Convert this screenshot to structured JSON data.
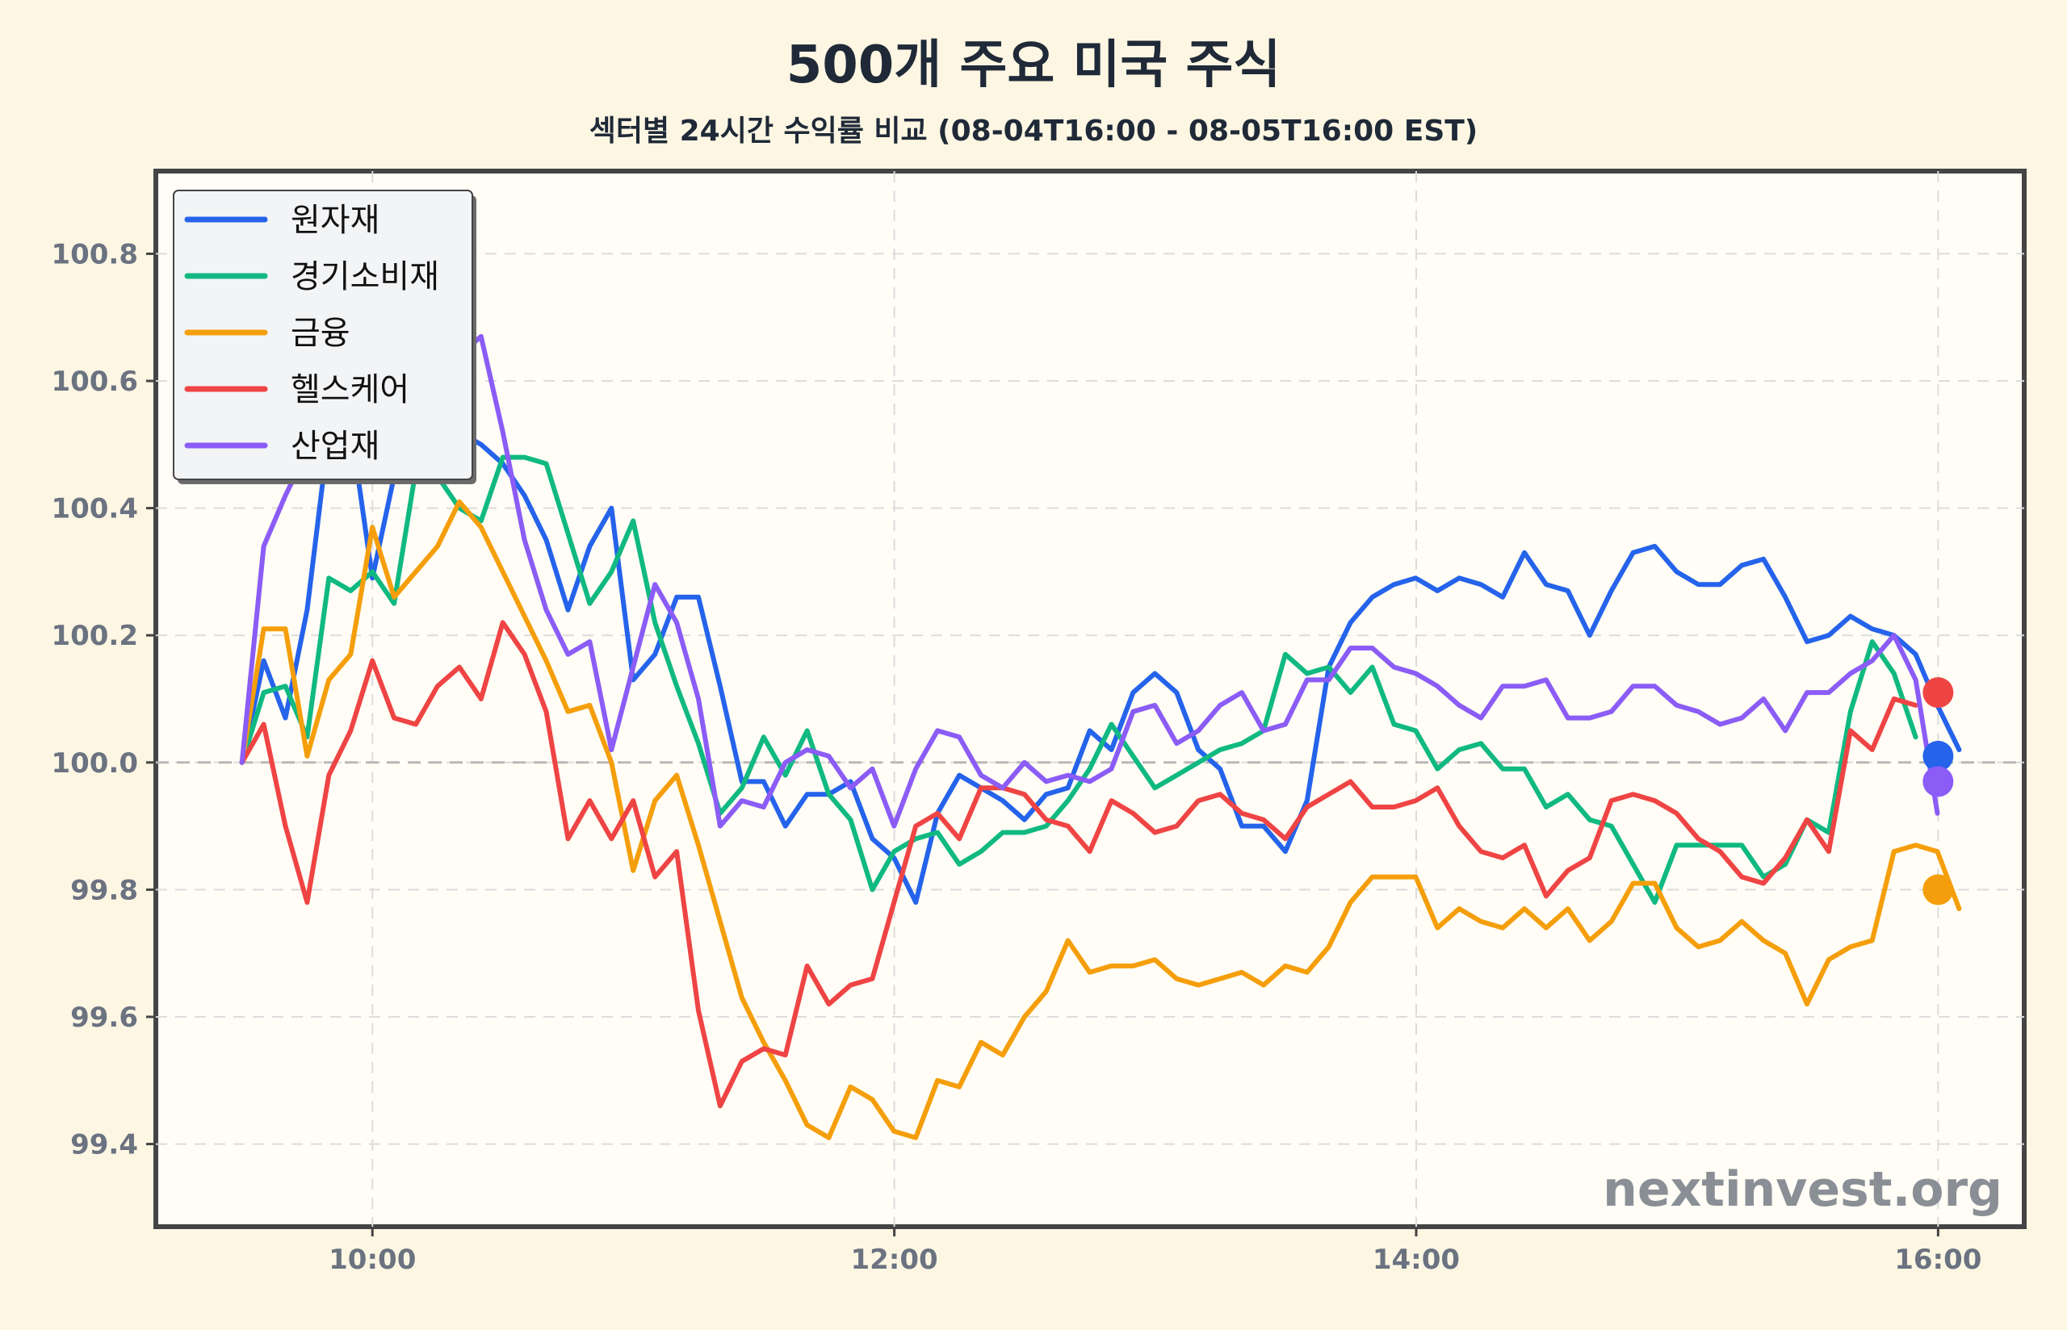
{
  "chart_data": {
    "type": "line",
    "title": "500개 주요 미국 주식",
    "subtitle": "섹터별 24시간 수익률 비교 (08-04T16:00 - 08-05T16:00 EST)",
    "watermark": "nextinvest.org",
    "x_ticks": [
      "10:00",
      "12:00",
      "14:00",
      "16:00"
    ],
    "x_tick_hours": [
      10,
      12,
      14,
      16
    ],
    "xlim": [
      9.17,
      16.33
    ],
    "y_ticks": [
      "99.4",
      "99.6",
      "99.8",
      "100.0",
      "100.2",
      "100.4",
      "100.6",
      "100.8"
    ],
    "y_tick_values": [
      99.4,
      99.6,
      99.8,
      100.0,
      100.2,
      100.4,
      100.6,
      100.8
    ],
    "ylim": [
      99.27,
      100.93
    ],
    "baseline": 100.0,
    "grid": true,
    "legend_position": "top-left",
    "x_start_hour": 9.5,
    "x_step_hours": 0.0833,
    "series": [
      {
        "name": "원자재",
        "color": "#2563eb",
        "end_marker": 100.01,
        "values": [
          100.0,
          100.16,
          100.07,
          100.24,
          100.52,
          100.53,
          100.29,
          100.45,
          100.6,
          100.59,
          100.52,
          100.5,
          100.47,
          100.42,
          100.35,
          100.24,
          100.34,
          100.4,
          100.13,
          100.17,
          100.26,
          100.26,
          100.12,
          99.97,
          99.97,
          99.9,
          99.95,
          99.95,
          99.97,
          99.88,
          99.85,
          99.78,
          99.92,
          99.98,
          99.96,
          99.94,
          99.91,
          99.95,
          99.96,
          100.05,
          100.02,
          100.11,
          100.14,
          100.11,
          100.02,
          99.99,
          99.9,
          99.9,
          99.86,
          99.94,
          100.15,
          100.22,
          100.26,
          100.28,
          100.29,
          100.27,
          100.29,
          100.28,
          100.26,
          100.33,
          100.28,
          100.27,
          100.2,
          100.27,
          100.33,
          100.34,
          100.3,
          100.28,
          100.28,
          100.31,
          100.32,
          100.26,
          100.19,
          100.2,
          100.23,
          100.21,
          100.2,
          100.17,
          100.09,
          100.02
        ]
      },
      {
        "name": "경기소비재",
        "color": "#10b981",
        "end_marker": null,
        "values": [
          100.0,
          100.11,
          100.12,
          100.04,
          100.29,
          100.27,
          100.3,
          100.25,
          100.46,
          100.45,
          100.4,
          100.38,
          100.48,
          100.48,
          100.47,
          100.36,
          100.25,
          100.3,
          100.38,
          100.22,
          100.12,
          100.03,
          99.92,
          99.96,
          100.04,
          99.98,
          100.05,
          99.95,
          99.91,
          99.8,
          99.86,
          99.88,
          99.89,
          99.84,
          99.86,
          99.89,
          99.89,
          99.9,
          99.94,
          99.99,
          100.06,
          100.01,
          99.96,
          99.98,
          100.0,
          100.02,
          100.03,
          100.05,
          100.17,
          100.14,
          100.15,
          100.11,
          100.15,
          100.06,
          100.05,
          99.99,
          100.02,
          100.03,
          99.99,
          99.99,
          99.93,
          99.95,
          99.91,
          99.9,
          99.84,
          99.78,
          99.87,
          99.87,
          99.87,
          99.87,
          99.82,
          99.84,
          99.91,
          99.89,
          100.08,
          100.19,
          100.14,
          100.04
        ]
      },
      {
        "name": "금융",
        "color": "#f59e0b",
        "end_marker": 99.8,
        "values": [
          100.0,
          100.21,
          100.21,
          100.01,
          100.13,
          100.17,
          100.37,
          100.26,
          100.3,
          100.34,
          100.41,
          100.37,
          100.3,
          100.23,
          100.16,
          100.08,
          100.09,
          100.0,
          99.83,
          99.94,
          99.98,
          99.87,
          99.75,
          99.63,
          99.56,
          99.5,
          99.43,
          99.41,
          99.49,
          99.47,
          99.42,
          99.41,
          99.5,
          99.49,
          99.56,
          99.54,
          99.6,
          99.64,
          99.72,
          99.67,
          99.68,
          99.68,
          99.69,
          99.66,
          99.65,
          99.66,
          99.67,
          99.65,
          99.68,
          99.67,
          99.71,
          99.78,
          99.82,
          99.82,
          99.82,
          99.74,
          99.77,
          99.75,
          99.74,
          99.77,
          99.74,
          99.77,
          99.72,
          99.75,
          99.81,
          99.81,
          99.74,
          99.71,
          99.72,
          99.75,
          99.72,
          99.7,
          99.62,
          99.69,
          99.71,
          99.72,
          99.86,
          99.87,
          99.86,
          99.77
        ]
      },
      {
        "name": "헬스케어",
        "color": "#ef4444",
        "end_marker": 100.11,
        "values": [
          100.0,
          100.06,
          99.9,
          99.78,
          99.98,
          100.05,
          100.16,
          100.07,
          100.06,
          100.12,
          100.15,
          100.1,
          100.22,
          100.17,
          100.08,
          99.88,
          99.94,
          99.88,
          99.94,
          99.82,
          99.86,
          99.61,
          99.46,
          99.53,
          99.55,
          99.54,
          99.68,
          99.62,
          99.65,
          99.66,
          99.78,
          99.9,
          99.92,
          99.88,
          99.96,
          99.96,
          99.95,
          99.91,
          99.9,
          99.86,
          99.94,
          99.92,
          99.89,
          99.9,
          99.94,
          99.95,
          99.92,
          99.91,
          99.88,
          99.93,
          99.95,
          99.97,
          99.93,
          99.93,
          99.94,
          99.96,
          99.9,
          99.86,
          99.85,
          99.87,
          99.79,
          99.83,
          99.85,
          99.94,
          99.95,
          99.94,
          99.92,
          99.88,
          99.86,
          99.82,
          99.81,
          99.85,
          99.91,
          99.86,
          100.05,
          100.02,
          100.1,
          100.09
        ]
      },
      {
        "name": "산업재",
        "color": "#8b5cf6",
        "end_marker": 99.97,
        "values": [
          100.0,
          100.34,
          100.42,
          100.49,
          100.57,
          100.75,
          100.65,
          100.62,
          100.72,
          100.69,
          100.64,
          100.67,
          100.52,
          100.35,
          100.24,
          100.17,
          100.19,
          100.02,
          100.15,
          100.28,
          100.22,
          100.1,
          99.9,
          99.94,
          99.93,
          100.0,
          100.02,
          100.01,
          99.96,
          99.99,
          99.9,
          99.99,
          100.05,
          100.04,
          99.98,
          99.96,
          100.0,
          99.97,
          99.98,
          99.97,
          99.99,
          100.08,
          100.09,
          100.03,
          100.05,
          100.09,
          100.11,
          100.05,
          100.06,
          100.13,
          100.13,
          100.18,
          100.18,
          100.15,
          100.14,
          100.12,
          100.09,
          100.07,
          100.12,
          100.12,
          100.13,
          100.07,
          100.07,
          100.08,
          100.12,
          100.12,
          100.09,
          100.08,
          100.06,
          100.07,
          100.1,
          100.05,
          100.11,
          100.11,
          100.14,
          100.16,
          100.2,
          100.13,
          99.92
        ]
      }
    ]
  }
}
